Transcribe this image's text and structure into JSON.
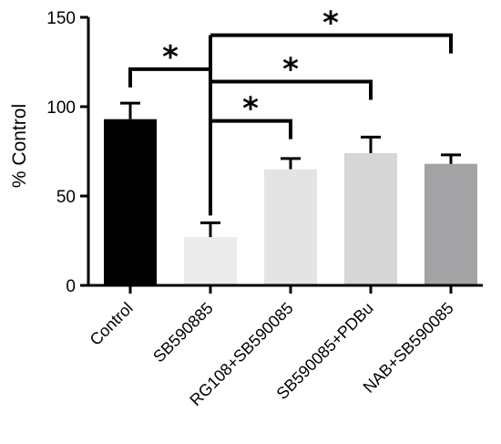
{
  "chart_data": {
    "type": "bar",
    "title": "",
    "xlabel": "",
    "ylabel": "% Control",
    "ylim": [
      0,
      150
    ],
    "yticks": [
      0,
      50,
      100,
      150
    ],
    "grid": false,
    "legend": "none",
    "categories": [
      "Control",
      "SB590885",
      "RG108+SB590085",
      "SB590085+PDBu",
      "NAB+SB590085"
    ],
    "values": [
      93,
      27,
      65,
      74,
      68
    ],
    "errors": [
      9,
      8,
      6,
      9,
      5
    ],
    "colors": [
      "#000000",
      "#ebebeb",
      "#e4e4e4",
      "#d6d6d6",
      "#a3a3a5"
    ],
    "significance": [
      {
        "from": "Control",
        "to": "SB590885",
        "label": "*",
        "y": 121
      },
      {
        "from": "SB590885",
        "to": "RG108+SB590085",
        "label": "*",
        "y": 92
      },
      {
        "from": "SB590885",
        "to": "SB590085+PDBu",
        "label": "*",
        "y": 114
      },
      {
        "from": "SB590885",
        "to": "NAB+SB590085",
        "label": "*",
        "y": 140
      }
    ]
  }
}
